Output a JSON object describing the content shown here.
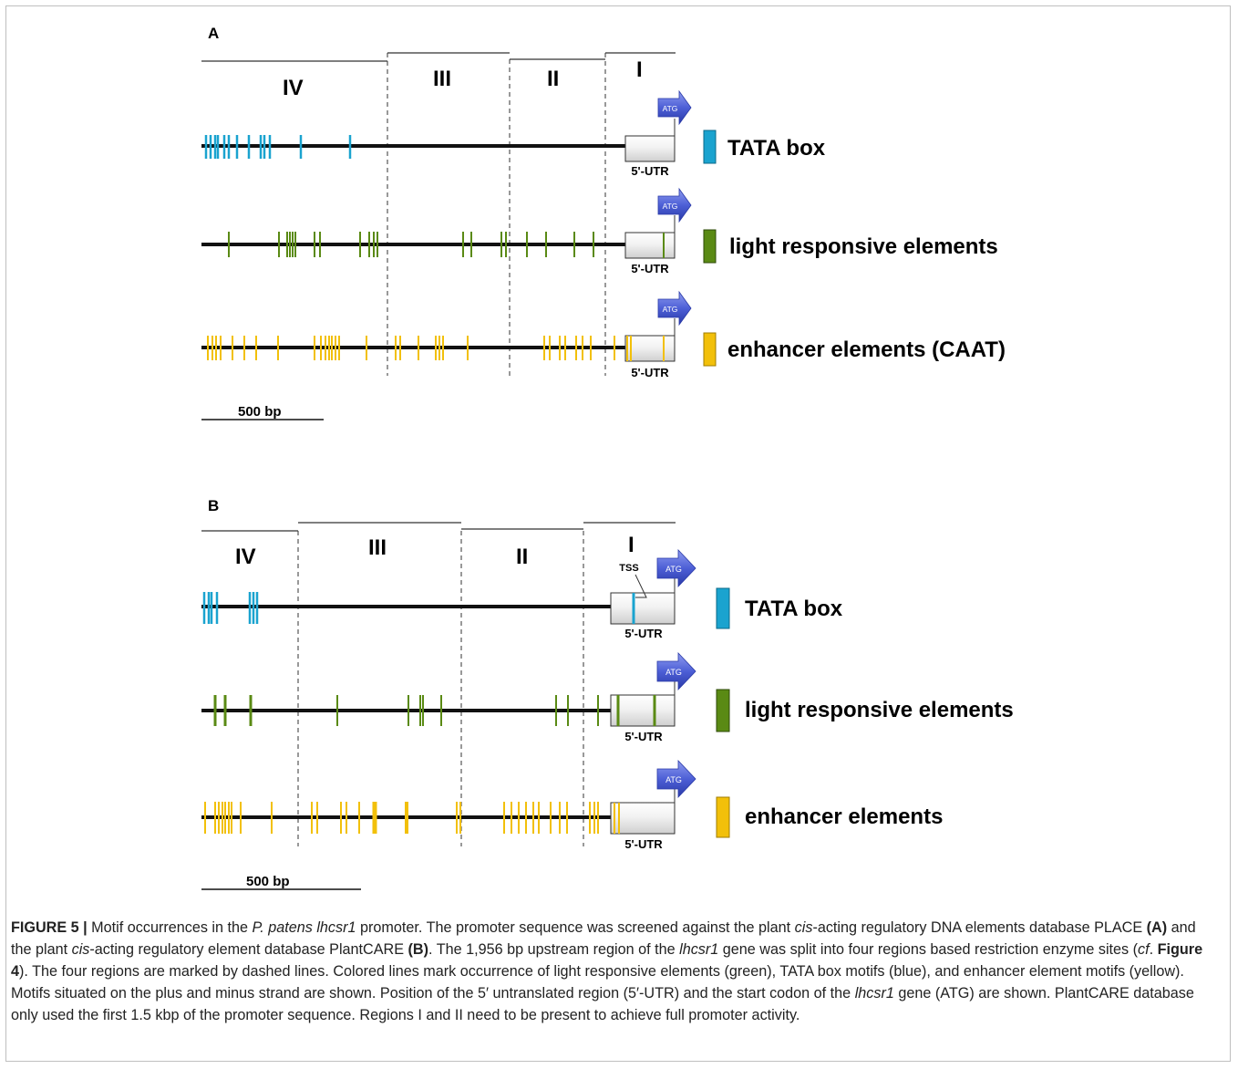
{
  "colors": {
    "tata": "#1aa3cf",
    "light": "#5a8a14",
    "enhancer": "#f2c00a",
    "arrow": "#4455c8",
    "line": "#111111"
  },
  "panelA": {
    "label": "A",
    "regions": [
      "IV",
      "III",
      "II",
      "I"
    ],
    "atg": "ATG",
    "utr": "5'-UTR",
    "legend": [
      "TATA box",
      "light responsive elements",
      "enhancer elements (CAAT)"
    ],
    "scale": "500 bp"
  },
  "panelB": {
    "label": "B",
    "regions": [
      "IV",
      "III",
      "II",
      "I"
    ],
    "atg": "ATG",
    "utr": "5'-UTR",
    "tss": "TSS",
    "legend": [
      "TATA box",
      "light responsive elements",
      "enhancer elements"
    ],
    "scale": "500 bp"
  },
  "caption": {
    "fig": "FIGURE 5 |",
    "p1": " Motif occurrences in the ",
    "sp": "P. patens lhcsr1",
    "p2": " promoter. The promoter sequence was screened against the plant ",
    "cis1": "cis",
    "p3": "-acting regulatory DNA elements database PLACE ",
    "a": "(A)",
    "p4": " and the plant ",
    "cis2": "cis",
    "p5": "-acting regulatory element database PlantCARE ",
    "b": "(B)",
    "p6": ". The 1,956 bp upstream region of the ",
    "gene1": "lhcsr1",
    "p7": " gene was split into four regions based restriction enzyme sites (",
    "cf": "cf",
    "p8": ". ",
    "fig4": "Figure 4",
    "p9": "). The four regions are marked by dashed lines. Colored lines mark occurrence of light responsive elements (green), TATA box motifs (blue), and enhancer element motifs (yellow). Motifs situated on the plus and minus strand are shown. Position of the 5′ untranslated region (5′-UTR) and the start codon of the ",
    "gene2": "lhcsr1",
    "p10": " gene (ATG) are shown. PlantCARE database only used the first 1.5 kbp of the promoter sequence. Regions I and II need to be present to achieve full promoter activity."
  }
}
